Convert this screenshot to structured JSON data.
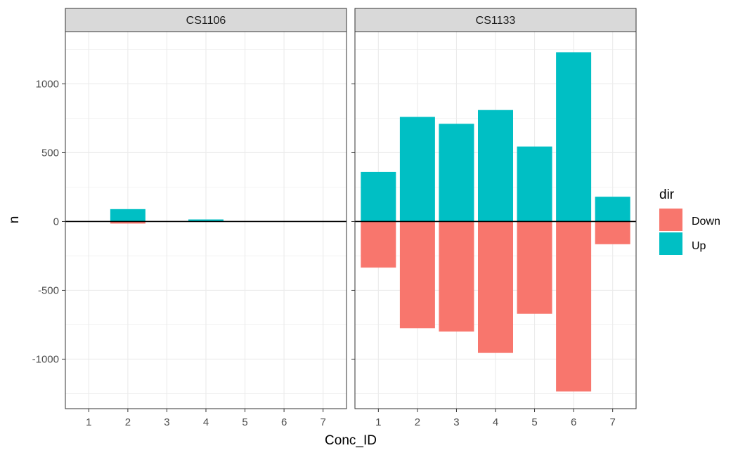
{
  "chart_data": {
    "type": "bar",
    "layout": "faceted-diverging",
    "xlabel": "Conc_ID",
    "ylabel": "n",
    "ylim": [
      -1360,
      1380
    ],
    "yticks": [
      -1000,
      -500,
      0,
      500,
      1000
    ],
    "categories": [
      "1",
      "2",
      "3",
      "4",
      "5",
      "6",
      "7"
    ],
    "grid": true,
    "legend": {
      "title": "dir",
      "position": "right",
      "entries": [
        {
          "label": "Down",
          "color": "#F8766D"
        },
        {
          "label": "Up",
          "color": "#00BFC4"
        }
      ]
    },
    "facets": [
      {
        "title": "CS1106",
        "series": [
          {
            "name": "Up",
            "color": "#00BFC4",
            "values": [
              0,
              90,
              0,
              15,
              0,
              0,
              0
            ]
          },
          {
            "name": "Down",
            "color": "#F8766D",
            "values": [
              0,
              -15,
              0,
              0,
              0,
              0,
              0
            ]
          }
        ]
      },
      {
        "title": "CS1133",
        "series": [
          {
            "name": "Up",
            "color": "#00BFC4",
            "values": [
              360,
              760,
              710,
              810,
              545,
              1230,
              180
            ]
          },
          {
            "name": "Down",
            "color": "#F8766D",
            "values": [
              -335,
              -775,
              -800,
              -955,
              -670,
              -1235,
              -165
            ]
          }
        ]
      }
    ]
  }
}
